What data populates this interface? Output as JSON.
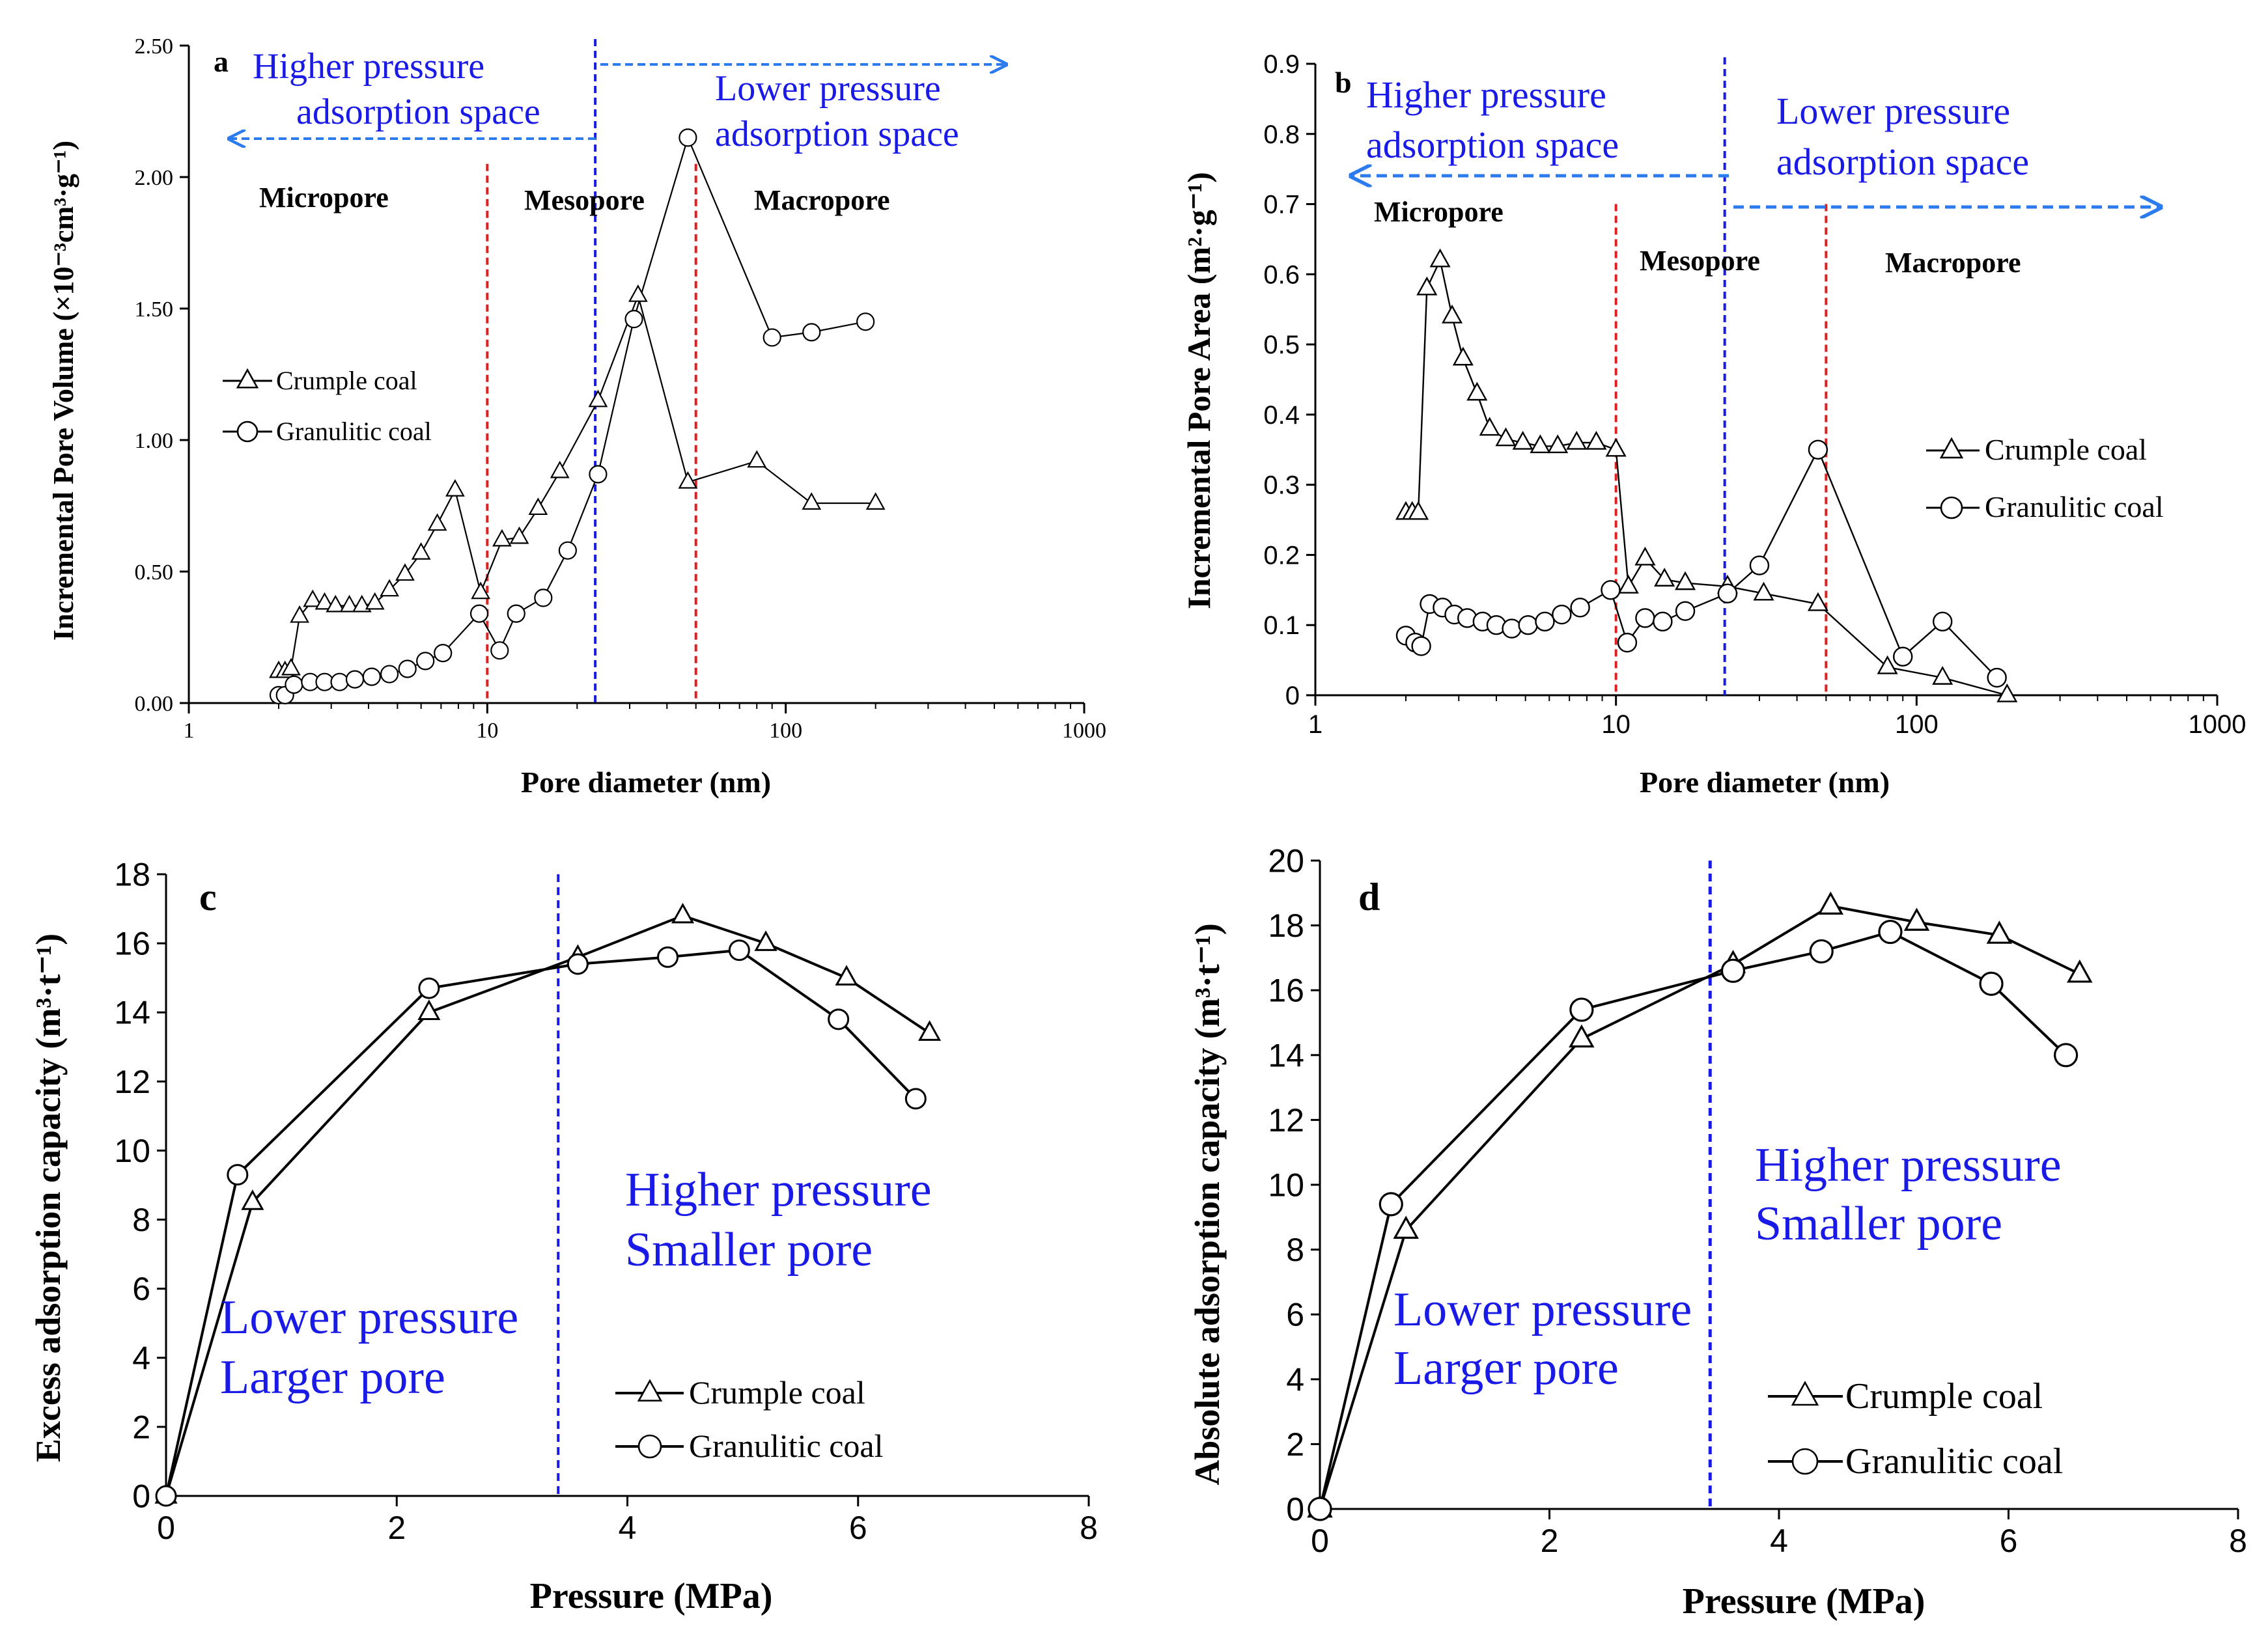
{
  "chart_data": [
    {
      "panel": "a",
      "type": "line",
      "xscale": "log",
      "xlim": [
        1,
        1000
      ],
      "ylim": [
        0,
        2.5
      ],
      "xticks": [
        1,
        10,
        100,
        1000
      ],
      "yticks": [
        0,
        0.5,
        1.0,
        1.5,
        2.0,
        2.5
      ],
      "ytick_labels": [
        "0.00",
        "0.50",
        "1.00",
        "1.50",
        "2.00",
        "2.50"
      ],
      "xlabel": "Pore diameter  (nm)",
      "ylabel": "Incremental  Pore Volume  (×10⁻³cm³·g⁻¹)",
      "grid": false,
      "legend_position": "middle-left",
      "series": [
        {
          "name": "Crumple coal",
          "marker": "triangle",
          "x": [
            2.0,
            2.1,
            2.2,
            2.35,
            2.6,
            2.85,
            3.1,
            3.45,
            3.8,
            4.2,
            4.7,
            5.3,
            6.0,
            6.8,
            7.8,
            9.5,
            11.2,
            12.8,
            14.8,
            17.5,
            23.5,
            32,
            47,
            80,
            122,
            200
          ],
          "y": [
            0.12,
            0.12,
            0.13,
            0.33,
            0.39,
            0.38,
            0.37,
            0.37,
            0.37,
            0.38,
            0.43,
            0.49,
            0.57,
            0.68,
            0.81,
            0.42,
            0.62,
            0.63,
            0.74,
            0.88,
            1.15,
            1.55,
            0.84,
            0.92,
            0.76,
            0.76
          ]
        },
        {
          "name": "Granulitic coal",
          "marker": "circle",
          "x": [
            2.0,
            2.1,
            2.25,
            2.55,
            2.85,
            3.2,
            3.6,
            4.1,
            4.7,
            5.4,
            6.2,
            7.1,
            9.4,
            11.0,
            12.5,
            15.4,
            18.6,
            23.5,
            31,
            47,
            90,
            122,
            185
          ],
          "y": [
            0.03,
            0.03,
            0.07,
            0.08,
            0.08,
            0.08,
            0.09,
            0.1,
            0.11,
            0.13,
            0.16,
            0.19,
            0.34,
            0.2,
            0.34,
            0.4,
            0.58,
            0.87,
            1.46,
            2.15,
            1.39,
            1.41,
            1.45
          ]
        }
      ],
      "vlines": [
        {
          "x": 10,
          "color": "#e02020",
          "style": "dashed"
        },
        {
          "x": 23,
          "color": "#1a1ae6",
          "style": "dashed"
        },
        {
          "x": 50,
          "color": "#e02020",
          "style": "dashed"
        }
      ],
      "annotations": {
        "panel_label": "a",
        "left_space": [
          "Higher pressure",
          "adsorption space"
        ],
        "right_space": [
          "Lower pressure",
          "adsorption space"
        ],
        "micropore": "Micropore",
        "mesopore": "Mesopore",
        "macropore": "Macropore"
      }
    },
    {
      "panel": "b",
      "type": "line",
      "xscale": "log",
      "xlim": [
        1,
        1000
      ],
      "ylim": [
        0,
        0.9
      ],
      "xticks": [
        1,
        10,
        100,
        1000
      ],
      "yticks": [
        0,
        0.1,
        0.2,
        0.3,
        0.4,
        0.5,
        0.6,
        0.7,
        0.8,
        0.9
      ],
      "ytick_labels": [
        "0",
        "0.1",
        "0.2",
        "0.3",
        "0.4",
        "0.5",
        "0.6",
        "0.7",
        "0.8",
        "0.9"
      ],
      "xlabel": "Pore diameter  (nm)",
      "ylabel": "Incremental  Pore Area  (m²·g⁻¹)",
      "grid": false,
      "legend_position": "right",
      "series": [
        {
          "name": "Crumple coal",
          "marker": "triangle",
          "x": [
            2.0,
            2.1,
            2.2,
            2.35,
            2.6,
            2.85,
            3.1,
            3.45,
            3.8,
            4.3,
            4.9,
            5.6,
            6.4,
            7.4,
            8.6,
            10.0,
            11.0,
            12.5,
            14.5,
            17.0,
            23.5,
            31,
            47,
            80,
            122,
            200
          ],
          "y": [
            0.26,
            0.26,
            0.26,
            0.58,
            0.62,
            0.54,
            0.48,
            0.43,
            0.38,
            0.365,
            0.36,
            0.355,
            0.355,
            0.36,
            0.36,
            0.35,
            0.155,
            0.195,
            0.165,
            0.16,
            0.155,
            0.145,
            0.13,
            0.04,
            0.025,
            0.0
          ]
        },
        {
          "name": "Granulitic coal",
          "marker": "circle",
          "x": [
            2.0,
            2.15,
            2.25,
            2.4,
            2.65,
            2.9,
            3.2,
            3.6,
            4.0,
            4.5,
            5.1,
            5.8,
            6.6,
            7.6,
            9.6,
            10.9,
            12.5,
            14.3,
            17.0,
            23.5,
            30,
            47,
            90,
            122,
            185
          ],
          "y": [
            0.085,
            0.075,
            0.07,
            0.13,
            0.125,
            0.115,
            0.11,
            0.105,
            0.1,
            0.095,
            0.1,
            0.105,
            0.115,
            0.125,
            0.15,
            0.075,
            0.11,
            0.105,
            0.12,
            0.145,
            0.185,
            0.35,
            0.055,
            0.105,
            0.025
          ]
        }
      ],
      "vlines": [
        {
          "x": 10,
          "color": "#e02020",
          "style": "dashed"
        },
        {
          "x": 23,
          "color": "#1a1ae6",
          "style": "dashed"
        },
        {
          "x": 50,
          "color": "#e02020",
          "style": "dashed"
        }
      ],
      "annotations": {
        "panel_label": "b",
        "left_space": [
          "Higher pressure",
          "adsorption  space"
        ],
        "right_space": [
          "Lower pressure",
          "adsorption  space"
        ],
        "micropore": "Micropore",
        "mesopore": "Mesopore",
        "macropore": "Macropore"
      }
    },
    {
      "panel": "c",
      "type": "line",
      "xlim": [
        0,
        8
      ],
      "ylim": [
        0,
        18
      ],
      "xticks": [
        0,
        2,
        4,
        6,
        8
      ],
      "yticks": [
        0,
        2,
        4,
        6,
        8,
        10,
        12,
        14,
        16,
        18
      ],
      "xlabel": "Pressure  (MPa)",
      "ylabel": "Excess adsorption capacity (m³·t⁻¹)",
      "grid": false,
      "legend_position": "bottom-right",
      "series": [
        {
          "name": "Crumple coal",
          "marker": "triangle",
          "x": [
            0,
            0.75,
            2.28,
            3.57,
            4.48,
            5.2,
            5.9,
            6.62
          ],
          "y": [
            0,
            8.5,
            14.0,
            15.6,
            16.8,
            16.0,
            15.0,
            13.4
          ]
        },
        {
          "name": "Granulitic coal",
          "marker": "circle",
          "x": [
            0,
            0.62,
            2.28,
            3.57,
            4.35,
            4.97,
            5.83,
            6.5
          ],
          "y": [
            0,
            9.3,
            14.7,
            15.4,
            15.6,
            15.8,
            13.8,
            11.5
          ]
        }
      ],
      "vlines": [
        {
          "x": 3.4,
          "color": "#1a1ae6",
          "style": "dashed"
        }
      ],
      "annotations": {
        "panel_label": "c",
        "right_text": [
          "Higher pressure",
          "Smaller pore"
        ],
        "left_text": [
          "Lower pressure",
          "Larger pore"
        ]
      }
    },
    {
      "panel": "d",
      "type": "line",
      "xlim": [
        0,
        8
      ],
      "ylim": [
        0,
        20
      ],
      "xticks": [
        0,
        2,
        4,
        6,
        8
      ],
      "yticks": [
        0,
        2,
        4,
        6,
        8,
        10,
        12,
        14,
        16,
        18,
        20
      ],
      "xlabel": "Pressure  (MPa)",
      "ylabel": "Absolute adsorption capacity  (m³·t⁻¹)",
      "grid": false,
      "legend_position": "bottom-right",
      "series": [
        {
          "name": "Crumple coal",
          "marker": "triangle",
          "x": [
            0,
            0.75,
            2.28,
            3.6,
            4.45,
            5.2,
            5.92,
            6.62
          ],
          "y": [
            0,
            8.6,
            14.5,
            16.8,
            18.6,
            18.1,
            17.7,
            16.5
          ]
        },
        {
          "name": "Granulitic coal",
          "marker": "circle",
          "x": [
            0,
            0.62,
            2.28,
            3.6,
            4.37,
            4.97,
            5.85,
            6.5
          ],
          "y": [
            0,
            9.4,
            15.4,
            16.6,
            17.2,
            17.8,
            16.2,
            14.0
          ]
        }
      ],
      "vlines": [
        {
          "x": 3.4,
          "color": "#1a1ae6",
          "style": "dashed"
        }
      ],
      "annotations": {
        "panel_label": "d",
        "right_text": [
          "Higher pressure",
          "Smaller pore"
        ],
        "left_text": [
          "Lower pressure",
          "Larger pore"
        ]
      }
    }
  ],
  "colors": {
    "axis": "#000000",
    "series": "#000000",
    "annotation_blue": "#1a1ae6",
    "arrow_blue": "#2b7bef",
    "divider_red": "#e02020"
  }
}
